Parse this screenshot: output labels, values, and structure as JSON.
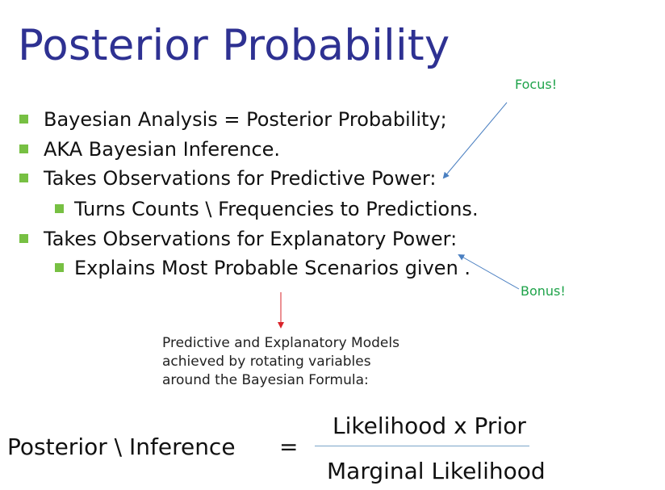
{
  "slide": {
    "title": "Posterior Probability",
    "bullets": [
      {
        "level": 1,
        "text": "Bayesian Analysis = Posterior Probability;"
      },
      {
        "level": 1,
        "text": "AKA Bayesian Inference."
      },
      {
        "level": 1,
        "text": "Takes Observations for Predictive Power:"
      },
      {
        "level": 2,
        "text": "Turns Counts \\ Frequencies to Predictions."
      },
      {
        "level": 1,
        "text": "Takes Observations for Explanatory Power:"
      },
      {
        "level": 2,
        "text": "Explains Most Probable Scenarios given ."
      }
    ],
    "annotations": {
      "focus": "Focus!",
      "bonus": "Bonus!"
    },
    "caption": "Predictive and Explanatory Models\nachieved by rotating variables\naround the Bayesian Formula:",
    "formula": {
      "lhs": "Posterior \\ Inference",
      "equals": "=",
      "numerator": "Likelihood x Prior",
      "denominator": "Marginal Likelihood"
    },
    "colors": {
      "title": "#2e3192",
      "bullet_marker": "#77c043",
      "annotation_text": "#1fa34a",
      "annotation_arrow": "#4a7fc1",
      "caption_arrow": "#d9232a"
    }
  }
}
